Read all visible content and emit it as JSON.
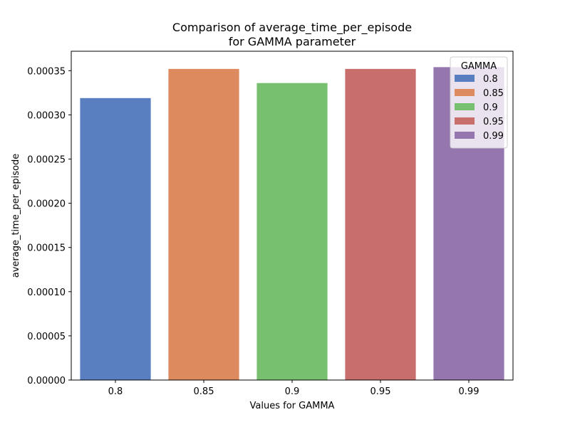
{
  "chart_data": {
    "type": "bar",
    "title_line1": "Comparison of average_time_per_episode",
    "title_line2": "for GAMMA parameter",
    "xlabel": "Values for GAMMA",
    "ylabel": "average_time_per_episode",
    "categories": [
      "0.8",
      "0.85",
      "0.9",
      "0.95",
      "0.99"
    ],
    "values": [
      0.000319,
      0.000352,
      0.000336,
      0.000352,
      0.000354
    ],
    "colors": [
      "#5a7fc0",
      "#dc8a5e",
      "#76c070",
      "#c86f6e",
      "#9576ae"
    ],
    "ylim": [
      0,
      0.000372
    ],
    "yticks": [
      "0.00000",
      "0.00005",
      "0.00010",
      "0.00015",
      "0.00020",
      "0.00025",
      "0.00030",
      "0.00035"
    ],
    "ytick_values": [
      0,
      5e-05,
      0.0001,
      0.00015,
      0.0002,
      0.00025,
      0.0003,
      0.00035
    ],
    "grid": false,
    "legend": {
      "title": "GAMMA",
      "placement": "top-right",
      "entries": [
        "0.8",
        "0.85",
        "0.9",
        "0.95",
        "0.99"
      ]
    }
  }
}
